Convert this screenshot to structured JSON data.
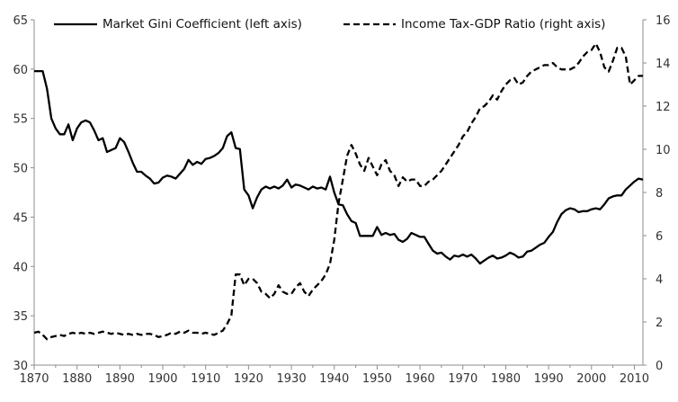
{
  "chart_data": {
    "type": "line",
    "title": "",
    "xlabel": "",
    "ylabel_left": "",
    "ylabel_right": "",
    "xlim": [
      1870,
      2012
    ],
    "ylim_left": [
      30,
      65
    ],
    "ylim_right": [
      0,
      16
    ],
    "x_ticks": [
      "1870",
      "1880",
      "1890",
      "1900",
      "1910",
      "1920",
      "1930",
      "1940",
      "1950",
      "1960",
      "1970",
      "1980",
      "1990",
      "2000",
      "2010"
    ],
    "y_left_ticks": [
      "30",
      "35",
      "40",
      "45",
      "50",
      "55",
      "60",
      "65"
    ],
    "y_right_ticks": [
      "0",
      "2",
      "4",
      "6",
      "8",
      "10",
      "12",
      "14",
      "16"
    ],
    "grid": false,
    "legend_position": "top",
    "series": [
      {
        "name": "Market Gini Coefficient (left axis)",
        "axis": "left",
        "style": "solid",
        "color": "#000000",
        "points": [
          [
            1870,
            59.8
          ],
          [
            1871,
            59.8
          ],
          [
            1872,
            59.8
          ],
          [
            1873,
            58
          ],
          [
            1874,
            55
          ],
          [
            1875,
            54
          ],
          [
            1876,
            53.4
          ],
          [
            1877,
            53.4
          ],
          [
            1878,
            54.4
          ],
          [
            1879,
            52.8
          ],
          [
            1880,
            54
          ],
          [
            1881,
            54.6
          ],
          [
            1882,
            54.8
          ],
          [
            1883,
            54.6
          ],
          [
            1884,
            53.8
          ],
          [
            1885,
            52.8
          ],
          [
            1886,
            53
          ],
          [
            1887,
            51.6
          ],
          [
            1888,
            51.8
          ],
          [
            1889,
            52
          ],
          [
            1890,
            53
          ],
          [
            1891,
            52.6
          ],
          [
            1892,
            51.6
          ],
          [
            1893,
            50.5
          ],
          [
            1894,
            49.6
          ],
          [
            1895,
            49.6
          ],
          [
            1896,
            49.2
          ],
          [
            1897,
            48.9
          ],
          [
            1898,
            48.4
          ],
          [
            1899,
            48.5
          ],
          [
            1900,
            49
          ],
          [
            1901,
            49.2
          ],
          [
            1902,
            49.1
          ],
          [
            1903,
            48.9
          ],
          [
            1904,
            49.4
          ],
          [
            1905,
            49.9
          ],
          [
            1906,
            50.8
          ],
          [
            1907,
            50.3
          ],
          [
            1908,
            50.6
          ],
          [
            1909,
            50.4
          ],
          [
            1910,
            50.9
          ],
          [
            1911,
            51
          ],
          [
            1912,
            51.2
          ],
          [
            1913,
            51.5
          ],
          [
            1914,
            52
          ],
          [
            1915,
            53.2
          ],
          [
            1916,
            53.6
          ],
          [
            1917,
            52
          ],
          [
            1918,
            51.9
          ],
          [
            1919,
            47.8
          ],
          [
            1920,
            47.2
          ],
          [
            1921,
            45.9
          ],
          [
            1922,
            47
          ],
          [
            1923,
            47.8
          ],
          [
            1924,
            48.1
          ],
          [
            1925,
            47.9
          ],
          [
            1926,
            48.1
          ],
          [
            1927,
            47.9
          ],
          [
            1928,
            48.2
          ],
          [
            1929,
            48.8
          ],
          [
            1930,
            48
          ],
          [
            1931,
            48.3
          ],
          [
            1932,
            48.2
          ],
          [
            1933,
            48
          ],
          [
            1934,
            47.8
          ],
          [
            1935,
            48.1
          ],
          [
            1936,
            47.9
          ],
          [
            1937,
            48
          ],
          [
            1938,
            47.8
          ],
          [
            1939,
            49.1
          ],
          [
            1940,
            47.5
          ],
          [
            1941,
            46.3
          ],
          [
            1942,
            46.2
          ],
          [
            1943,
            45.3
          ],
          [
            1944,
            44.6
          ],
          [
            1945,
            44.4
          ],
          [
            1946,
            43.1
          ],
          [
            1947,
            43.1
          ],
          [
            1948,
            43.1
          ],
          [
            1949,
            43.1
          ],
          [
            1950,
            44
          ],
          [
            1951,
            43.2
          ],
          [
            1952,
            43.4
          ],
          [
            1953,
            43.2
          ],
          [
            1954,
            43.3
          ],
          [
            1955,
            42.7
          ],
          [
            1956,
            42.5
          ],
          [
            1957,
            42.8
          ],
          [
            1958,
            43.4
          ],
          [
            1959,
            43.2
          ],
          [
            1960,
            43
          ],
          [
            1961,
            43
          ],
          [
            1962,
            42.3
          ],
          [
            1963,
            41.6
          ],
          [
            1964,
            41.3
          ],
          [
            1965,
            41.4
          ],
          [
            1966,
            41
          ],
          [
            1967,
            40.7
          ],
          [
            1968,
            41.1
          ],
          [
            1969,
            41
          ],
          [
            1970,
            41.2
          ],
          [
            1971,
            41
          ],
          [
            1972,
            41.2
          ],
          [
            1973,
            40.8
          ],
          [
            1974,
            40.3
          ],
          [
            1975,
            40.6
          ],
          [
            1976,
            40.9
          ],
          [
            1977,
            41.1
          ],
          [
            1978,
            40.8
          ],
          [
            1979,
            40.9
          ],
          [
            1980,
            41.1
          ],
          [
            1981,
            41.4
          ],
          [
            1982,
            41.2
          ],
          [
            1983,
            40.9
          ],
          [
            1984,
            41
          ],
          [
            1985,
            41.5
          ],
          [
            1986,
            41.6
          ],
          [
            1987,
            41.9
          ],
          [
            1988,
            42.2
          ],
          [
            1989,
            42.4
          ],
          [
            1990,
            43
          ],
          [
            1991,
            43.5
          ],
          [
            1992,
            44.5
          ],
          [
            1993,
            45.3
          ],
          [
            1994,
            45.7
          ],
          [
            1995,
            45.9
          ],
          [
            1996,
            45.8
          ],
          [
            1997,
            45.5
          ],
          [
            1998,
            45.6
          ],
          [
            1999,
            45.6
          ],
          [
            2000,
            45.8
          ],
          [
            2001,
            45.9
          ],
          [
            2002,
            45.8
          ],
          [
            2003,
            46.3
          ],
          [
            2004,
            46.9
          ],
          [
            2005,
            47.1
          ],
          [
            2006,
            47.2
          ],
          [
            2007,
            47.2
          ],
          [
            2008,
            47.8
          ],
          [
            2009,
            48.2
          ],
          [
            2010,
            48.6
          ],
          [
            2011,
            48.9
          ],
          [
            2012,
            48.8
          ]
        ]
      },
      {
        "name": "Income Tax-GDP Ratio (right axis)",
        "axis": "right",
        "style": "dashed",
        "color": "#000000",
        "points": [
          [
            1870,
            1.5
          ],
          [
            1871,
            1.55
          ],
          [
            1872,
            1.4
          ],
          [
            1873,
            1.2
          ],
          [
            1874,
            1.3
          ],
          [
            1875,
            1.35
          ],
          [
            1876,
            1.4
          ],
          [
            1877,
            1.35
          ],
          [
            1878,
            1.45
          ],
          [
            1879,
            1.5
          ],
          [
            1880,
            1.45
          ],
          [
            1881,
            1.5
          ],
          [
            1882,
            1.45
          ],
          [
            1883,
            1.5
          ],
          [
            1884,
            1.45
          ],
          [
            1885,
            1.5
          ],
          [
            1886,
            1.55
          ],
          [
            1887,
            1.5
          ],
          [
            1888,
            1.45
          ],
          [
            1889,
            1.5
          ],
          [
            1890,
            1.45
          ],
          [
            1891,
            1.4
          ],
          [
            1892,
            1.45
          ],
          [
            1893,
            1.4
          ],
          [
            1894,
            1.45
          ],
          [
            1895,
            1.4
          ],
          [
            1896,
            1.45
          ],
          [
            1897,
            1.45
          ],
          [
            1898,
            1.4
          ],
          [
            1899,
            1.3
          ],
          [
            1900,
            1.35
          ],
          [
            1901,
            1.4
          ],
          [
            1902,
            1.5
          ],
          [
            1903,
            1.45
          ],
          [
            1904,
            1.55
          ],
          [
            1905,
            1.5
          ],
          [
            1906,
            1.6
          ],
          [
            1907,
            1.5
          ],
          [
            1908,
            1.5
          ],
          [
            1909,
            1.45
          ],
          [
            1910,
            1.5
          ],
          [
            1911,
            1.45
          ],
          [
            1912,
            1.4
          ],
          [
            1913,
            1.5
          ],
          [
            1914,
            1.6
          ],
          [
            1915,
            1.9
          ],
          [
            1916,
            2.3
          ],
          [
            1917,
            4.2
          ],
          [
            1918,
            4.2
          ],
          [
            1919,
            3.7
          ],
          [
            1920,
            4
          ],
          [
            1921,
            4
          ],
          [
            1922,
            3.8
          ],
          [
            1923,
            3.4
          ],
          [
            1924,
            3.3
          ],
          [
            1925,
            3.1
          ],
          [
            1926,
            3.3
          ],
          [
            1927,
            3.7
          ],
          [
            1928,
            3.4
          ],
          [
            1929,
            3.3
          ],
          [
            1930,
            3.3
          ],
          [
            1931,
            3.6
          ],
          [
            1932,
            3.8
          ],
          [
            1933,
            3.4
          ],
          [
            1934,
            3.2
          ],
          [
            1935,
            3.5
          ],
          [
            1936,
            3.7
          ],
          [
            1937,
            3.9
          ],
          [
            1938,
            4.2
          ],
          [
            1939,
            4.7
          ],
          [
            1940,
            5.8
          ],
          [
            1941,
            7.5
          ],
          [
            1942,
            8.6
          ],
          [
            1943,
            9.7
          ],
          [
            1944,
            10.2
          ],
          [
            1945,
            9.8
          ],
          [
            1946,
            9.3
          ],
          [
            1947,
            9
          ],
          [
            1948,
            9.6
          ],
          [
            1949,
            9.2
          ],
          [
            1950,
            8.8
          ],
          [
            1951,
            9.3
          ],
          [
            1952,
            9.5
          ],
          [
            1953,
            9
          ],
          [
            1954,
            8.8
          ],
          [
            1955,
            8.3
          ],
          [
            1956,
            8.7
          ],
          [
            1957,
            8.5
          ],
          [
            1958,
            8.6
          ],
          [
            1959,
            8.6
          ],
          [
            1960,
            8.3
          ],
          [
            1961,
            8.3
          ],
          [
            1962,
            8.5
          ],
          [
            1963,
            8.6
          ],
          [
            1964,
            8.8
          ],
          [
            1965,
            9
          ],
          [
            1966,
            9.3
          ],
          [
            1967,
            9.6
          ],
          [
            1968,
            9.9
          ],
          [
            1969,
            10.2
          ],
          [
            1970,
            10.6
          ],
          [
            1971,
            10.8
          ],
          [
            1972,
            11.2
          ],
          [
            1973,
            11.5
          ],
          [
            1974,
            11.9
          ],
          [
            1975,
            12
          ],
          [
            1976,
            12.2
          ],
          [
            1977,
            12.5
          ],
          [
            1978,
            12.3
          ],
          [
            1979,
            12.7
          ],
          [
            1980,
            13
          ],
          [
            1981,
            13.2
          ],
          [
            1982,
            13.3
          ],
          [
            1983,
            13
          ],
          [
            1984,
            13.1
          ],
          [
            1985,
            13.4
          ],
          [
            1986,
            13.6
          ],
          [
            1987,
            13.7
          ],
          [
            1988,
            13.8
          ],
          [
            1989,
            13.9
          ],
          [
            1990,
            13.9
          ],
          [
            1991,
            14
          ],
          [
            1992,
            13.8
          ],
          [
            1993,
            13.7
          ],
          [
            1994,
            13.7
          ],
          [
            1995,
            13.7
          ],
          [
            1996,
            13.8
          ],
          [
            1997,
            14
          ],
          [
            1998,
            14.3
          ],
          [
            1999,
            14.5
          ],
          [
            2000,
            14.6
          ],
          [
            2001,
            14.9
          ],
          [
            2002,
            14.5
          ],
          [
            2003,
            13.8
          ],
          [
            2004,
            13.6
          ],
          [
            2005,
            14.1
          ],
          [
            2006,
            14.7
          ],
          [
            2007,
            14.7
          ],
          [
            2008,
            14.3
          ],
          [
            2009,
            13
          ],
          [
            2010,
            13.2
          ],
          [
            2011,
            13.4
          ],
          [
            2012,
            13.4
          ]
        ]
      }
    ]
  }
}
